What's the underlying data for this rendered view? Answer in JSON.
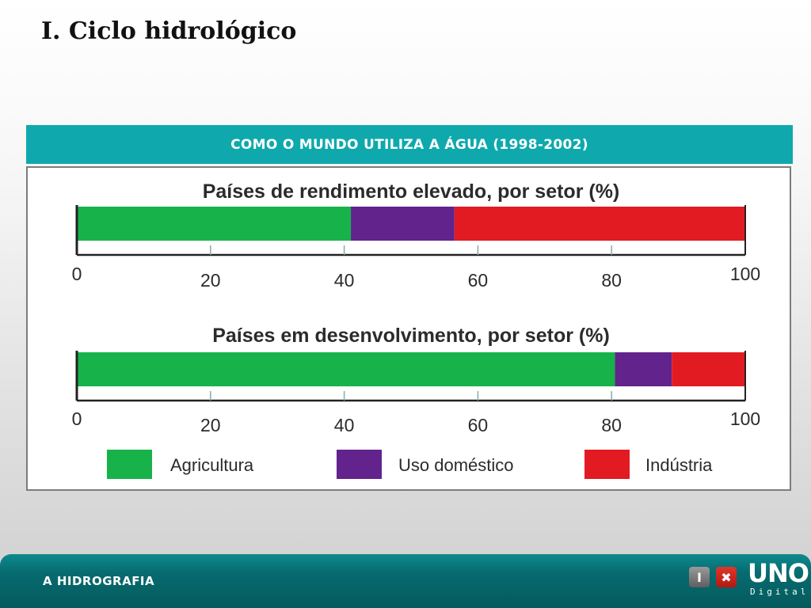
{
  "slide": {
    "title": "I. Ciclo hidrológico"
  },
  "chart_header": {
    "title": "COMO O MUNDO UTILIZA A ÁGUA (1998-2002)"
  },
  "chart_data": [
    {
      "type": "bar",
      "title": "Países de rendimento elevado, por setor (%)",
      "orientation": "horizontal-stacked",
      "series": [
        {
          "name": "Agricultura",
          "values": [
            41
          ]
        },
        {
          "name": "Uso doméstico",
          "values": [
            15.5
          ]
        },
        {
          "name": "Indústria",
          "values": [
            43.5
          ]
        }
      ],
      "xlim": [
        0,
        100
      ],
      "xticks": [
        "0",
        "20",
        "40",
        "60",
        "80",
        "100"
      ],
      "grid": false,
      "legend": "bottom"
    },
    {
      "type": "bar",
      "title": "Países em desenvolvimento, por setor (%)",
      "orientation": "horizontal-stacked",
      "series": [
        {
          "name": "Agricultura",
          "values": [
            80.5
          ]
        },
        {
          "name": "Uso doméstico",
          "values": [
            8.5
          ]
        },
        {
          "name": "Indústria",
          "values": [
            11
          ]
        }
      ],
      "xlim": [
        0,
        100
      ],
      "xticks": [
        "0",
        "20",
        "40",
        "60",
        "80",
        "100"
      ],
      "grid": false,
      "legend": "bottom"
    }
  ],
  "legend": {
    "items": [
      {
        "label": "Agricultura",
        "color": "#17b34a"
      },
      {
        "label": "Uso doméstico",
        "color": "#62238c"
      },
      {
        "label": "Indústria",
        "color": "#e21b23"
      }
    ]
  },
  "footer": {
    "label": "A HIDROGRAFIA"
  },
  "logo": {
    "i": "I",
    "x": "✖",
    "uno": "UNO",
    "digital": "Digital"
  }
}
